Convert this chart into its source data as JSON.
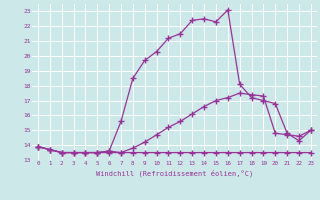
{
  "title": "",
  "xlabel": "Windchill (Refroidissement éolien,°C)",
  "xlim": [
    -0.5,
    23.5
  ],
  "ylim": [
    13,
    23.5
  ],
  "xticks": [
    0,
    1,
    2,
    3,
    4,
    5,
    6,
    7,
    8,
    9,
    10,
    11,
    12,
    13,
    14,
    15,
    16,
    17,
    18,
    19,
    20,
    21,
    22,
    23
  ],
  "yticks": [
    13,
    14,
    15,
    16,
    17,
    18,
    19,
    20,
    21,
    22,
    23
  ],
  "line_color": "#993399",
  "bg_color": "#cce8e8",
  "grid_color": "#aacccc",
  "line_width": 0.9,
  "marker": "+",
  "marker_size": 4,
  "marker_edge_width": 1.0,
  "lines": [
    {
      "x": [
        0,
        1,
        2,
        3,
        4,
        5,
        6,
        7,
        8,
        9,
        10,
        11,
        12,
        13,
        14,
        15,
        16,
        17,
        18,
        19,
        20,
        21,
        22,
        23
      ],
      "y": [
        13.9,
        13.7,
        13.5,
        13.5,
        13.5,
        13.5,
        13.5,
        13.5,
        13.5,
        13.5,
        13.5,
        13.5,
        13.5,
        13.5,
        13.5,
        13.5,
        13.5,
        13.5,
        13.5,
        13.5,
        13.5,
        13.5,
        13.5,
        13.5
      ]
    },
    {
      "x": [
        0,
        1,
        2,
        3,
        4,
        5,
        6,
        7,
        8,
        9,
        10,
        11,
        12,
        13,
        14,
        15,
        16,
        17,
        18,
        19,
        20,
        21,
        22,
        23
      ],
      "y": [
        13.9,
        13.7,
        13.5,
        13.5,
        13.5,
        13.5,
        13.6,
        13.5,
        13.8,
        14.2,
        14.7,
        15.2,
        15.6,
        16.1,
        16.6,
        17.0,
        17.2,
        17.5,
        17.4,
        17.3,
        14.8,
        14.7,
        14.6,
        15.0
      ]
    },
    {
      "x": [
        0,
        1,
        2,
        3,
        4,
        5,
        6,
        7,
        8,
        9,
        10,
        11,
        12,
        13,
        14,
        15,
        16,
        17,
        18,
        19,
        20,
        21,
        22,
        23
      ],
      "y": [
        13.9,
        13.7,
        13.5,
        13.5,
        13.5,
        13.5,
        13.6,
        15.6,
        18.5,
        19.7,
        20.3,
        21.2,
        21.5,
        22.4,
        22.5,
        22.3,
        23.1,
        18.1,
        17.2,
        17.0,
        16.8,
        14.8,
        14.3,
        15.0
      ]
    }
  ]
}
